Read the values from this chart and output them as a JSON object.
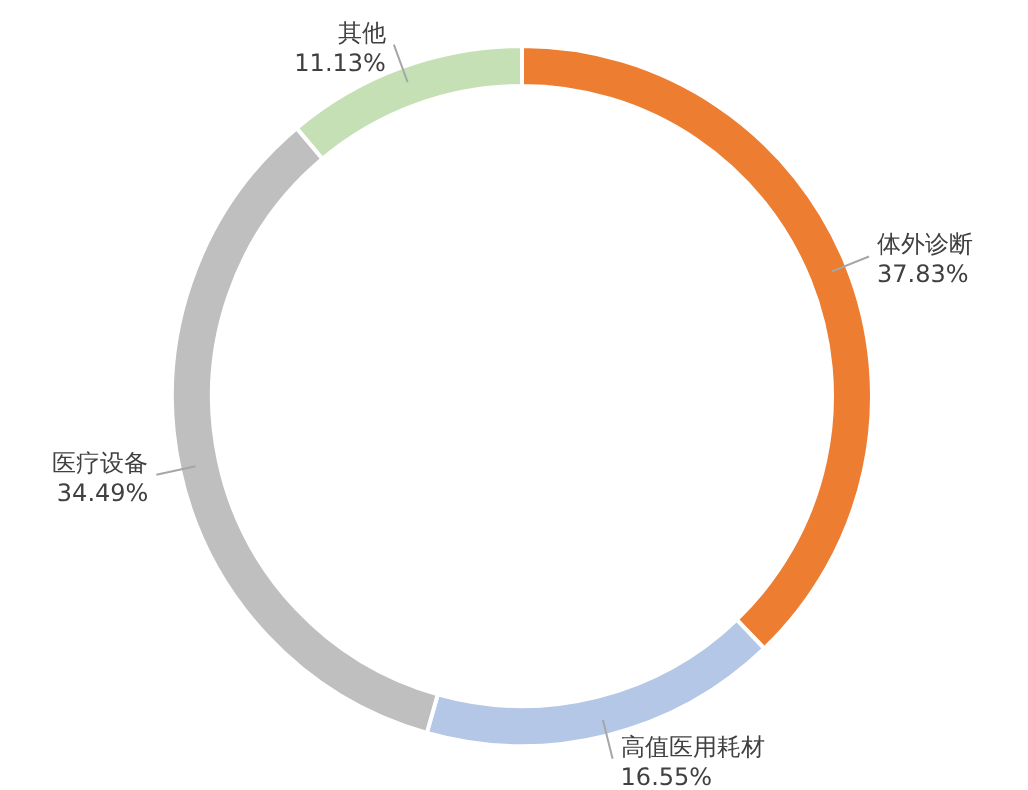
{
  "chart_data": {
    "type": "donut",
    "categories": [
      "体外诊断",
      "高值医用耗材",
      "医疗设备",
      "其他"
    ],
    "values": [
      37.83,
      16.55,
      34.49,
      11.13
    ],
    "colors": [
      "#ed7d31",
      "#b4c7e7",
      "#bfbfbf",
      "#c5e0b4"
    ],
    "value_labels": [
      "37.83%",
      "16.55%",
      "34.49%",
      "11.13%"
    ]
  }
}
